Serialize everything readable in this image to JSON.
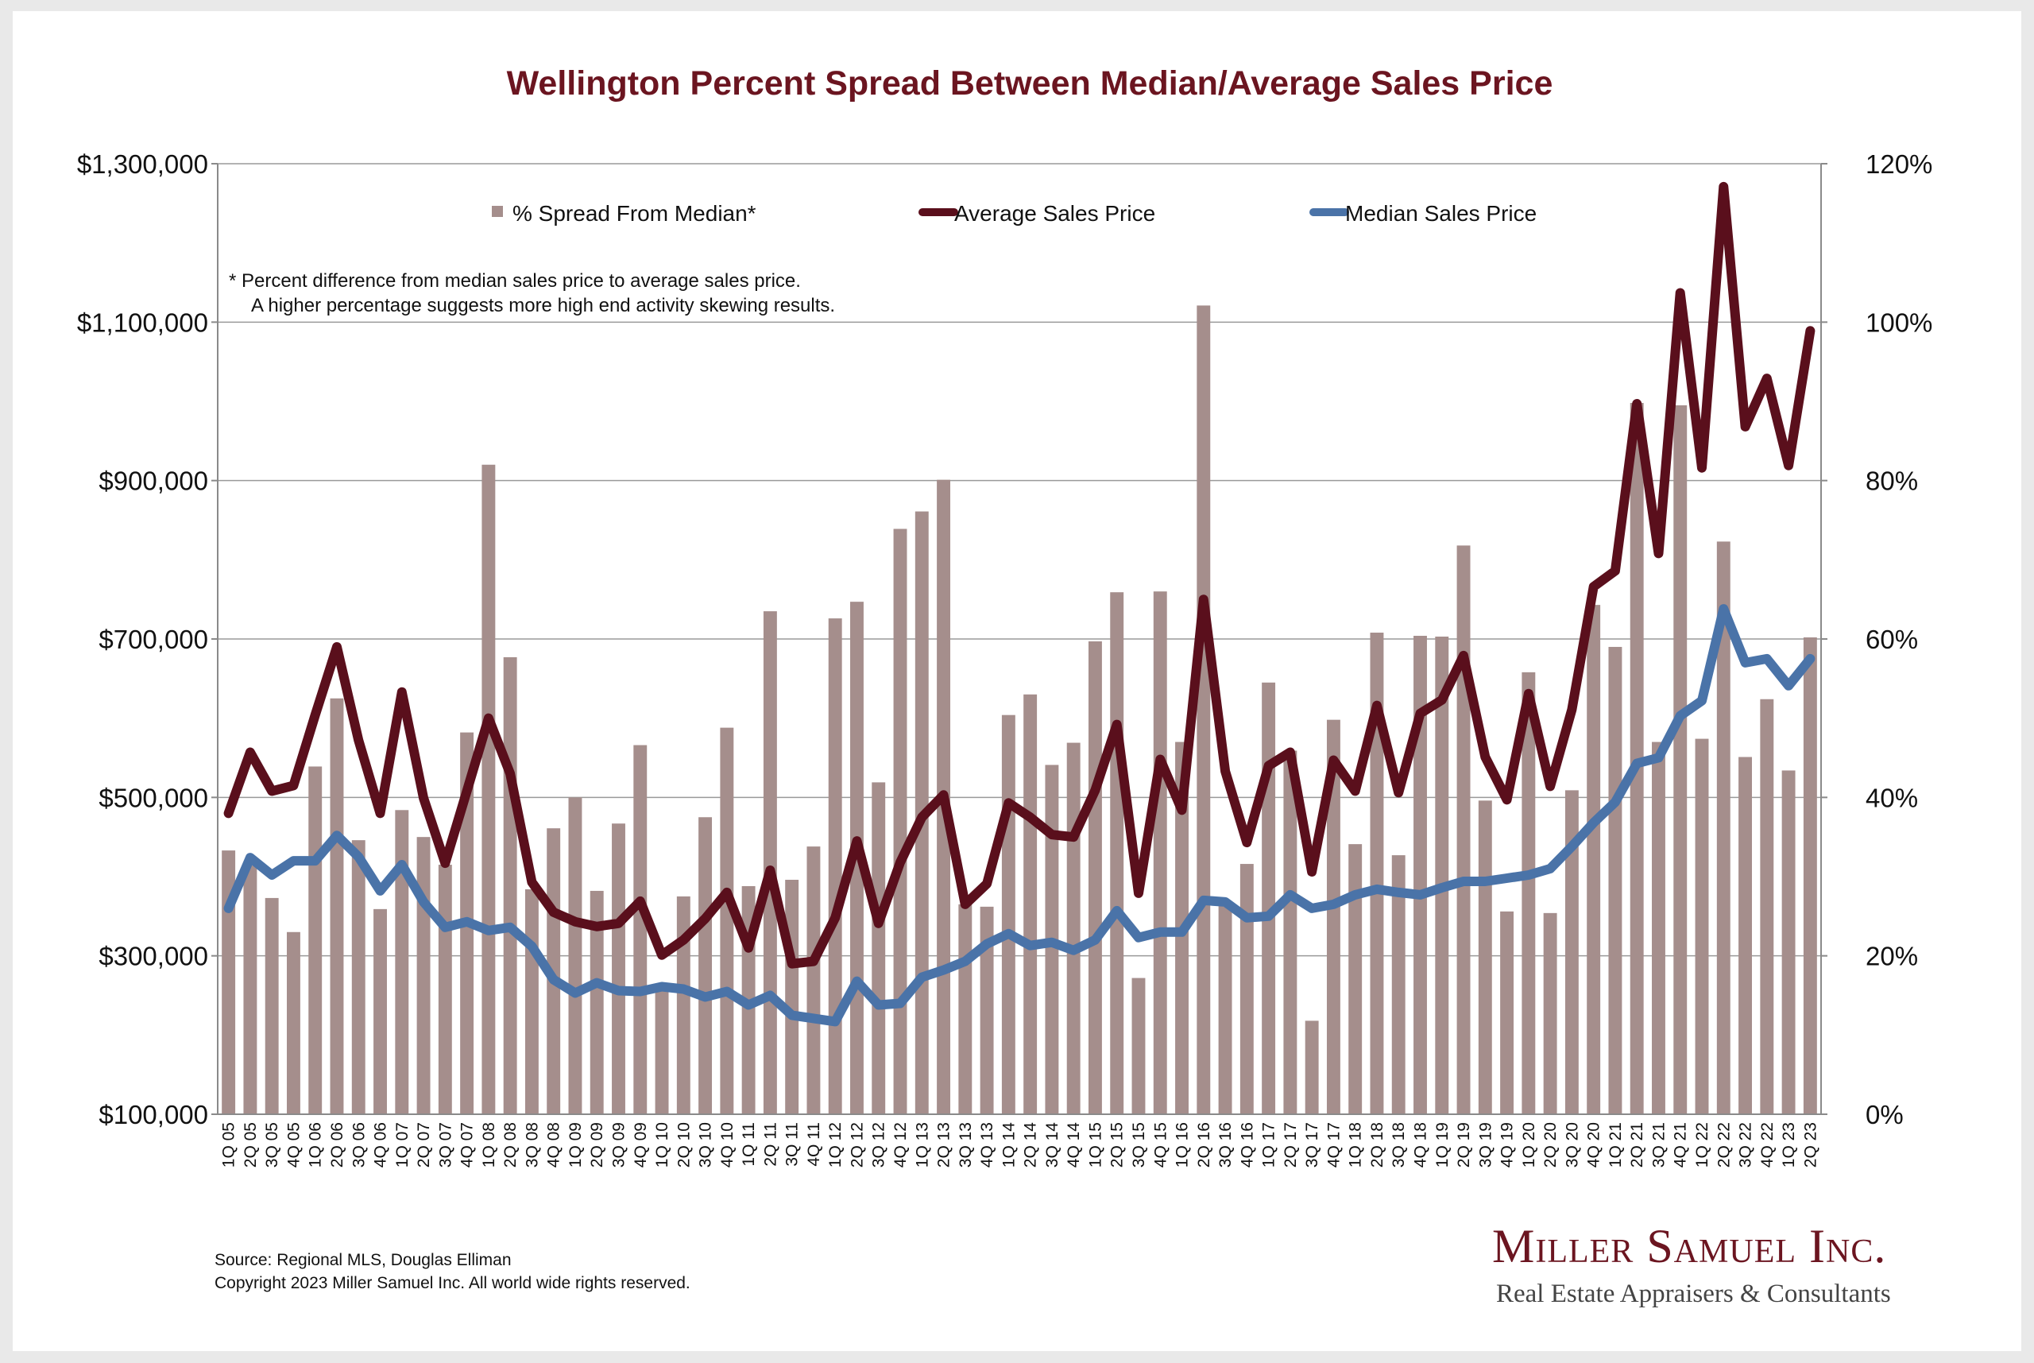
{
  "chart_data": {
    "type": "bar",
    "title": "Wellington Percent Spread Between Median/Average Sales Price",
    "categories": [
      "1Q 05",
      "2Q 05",
      "3Q 05",
      "4Q 05",
      "1Q 06",
      "2Q 06",
      "3Q 06",
      "4Q 06",
      "1Q 07",
      "2Q 07",
      "3Q 07",
      "4Q 07",
      "1Q 08",
      "2Q 08",
      "3Q 08",
      "4Q 08",
      "1Q 09",
      "2Q 09",
      "3Q 09",
      "4Q 09",
      "1Q 10",
      "2Q 10",
      "3Q 10",
      "4Q 10",
      "1Q 11",
      "2Q 11",
      "3Q 11",
      "4Q 11",
      "1Q 12",
      "2Q 12",
      "3Q 12",
      "4Q 12",
      "1Q 13",
      "2Q 13",
      "3Q 13",
      "4Q 13",
      "1Q 14",
      "2Q 14",
      "3Q 14",
      "4Q 14",
      "1Q 15",
      "2Q 15",
      "3Q 15",
      "4Q 15",
      "1Q 16",
      "2Q 16",
      "3Q 16",
      "4Q 16",
      "1Q 17",
      "2Q 17",
      "3Q 17",
      "4Q 17",
      "1Q 18",
      "2Q 18",
      "3Q 18",
      "4Q 18",
      "1Q 19",
      "2Q 19",
      "3Q 19",
      "4Q 19",
      "1Q 20",
      "2Q 20",
      "3Q 20",
      "4Q 20",
      "1Q 21",
      "2Q 21",
      "3Q 21",
      "4Q 21",
      "1Q 22",
      "2Q 22",
      "3Q 22",
      "4Q 22",
      "1Q 23",
      "2Q 23"
    ],
    "series": [
      {
        "name": "% Spread From Median*",
        "type": "bar",
        "axis": "right",
        "color": "#a58e8c",
        "values": [
          33.3,
          31.4,
          27.3,
          23.0,
          43.9,
          52.5,
          34.6,
          25.9,
          38.4,
          35.0,
          31.5,
          48.2,
          82.0,
          57.7,
          28.4,
          36.1,
          40.0,
          28.2,
          36.7,
          46.6,
          16.5,
          27.5,
          37.5,
          48.8,
          28.8,
          63.5,
          29.6,
          33.8,
          62.6,
          64.7,
          41.9,
          73.9,
          76.1,
          80.1,
          26.5,
          26.2,
          50.4,
          53.0,
          44.1,
          46.9,
          59.7,
          65.9,
          17.2,
          66.0,
          47.0,
          102.1,
          26.9,
          31.6,
          54.5,
          45.9,
          11.8,
          49.8,
          34.1,
          60.8,
          32.7,
          60.4,
          60.3,
          71.8,
          39.6,
          25.6,
          55.8,
          25.4,
          40.9,
          64.3,
          59.0,
          89.8,
          47.0,
          89.5,
          47.4,
          72.3,
          45.1,
          52.4,
          43.4,
          60.2
        ]
      },
      {
        "name": "Average Sales Price",
        "type": "line",
        "axis": "left",
        "color": "#5a0f1c",
        "values": [
          480000,
          557000,
          508000,
          515000,
          604000,
          690000,
          572000,
          480000,
          633000,
          499000,
          417000,
          508000,
          600000,
          530000,
          393000,
          355000,
          343000,
          337000,
          341000,
          369000,
          301000,
          320000,
          347000,
          380000,
          310000,
          408000,
          290000,
          293000,
          348000,
          445000,
          341000,
          418000,
          475000,
          503000,
          365000,
          391000,
          493000,
          475000,
          453000,
          450000,
          509000,
          592000,
          379000,
          548000,
          484000,
          750000,
          533000,
          443000,
          540000,
          557000,
          406000,
          547000,
          508000,
          616000,
          506000,
          606000,
          623000,
          679000,
          551000,
          497000,
          631000,
          514000,
          611000,
          766000,
          786000,
          997000,
          808000,
          1137000,
          916000,
          1271000,
          968000,
          1029000,
          919000,
          1089000
        ]
      },
      {
        "name": "Median Sales Price",
        "type": "line",
        "axis": "left",
        "color": "#4a73a8",
        "values": [
          360000,
          424000,
          402000,
          420000,
          420000,
          452000,
          425000,
          382000,
          415000,
          368000,
          336000,
          343000,
          332000,
          336000,
          312000,
          270000,
          253000,
          266000,
          256000,
          255000,
          261000,
          258000,
          248000,
          255000,
          238000,
          250000,
          225000,
          221000,
          217000,
          268000,
          238000,
          240000,
          273000,
          282000,
          293000,
          315000,
          328000,
          313000,
          317000,
          307000,
          320000,
          357000,
          323000,
          330000,
          330000,
          370000,
          368000,
          348000,
          350000,
          377000,
          360000,
          365000,
          377000,
          384000,
          380000,
          377000,
          386000,
          394000,
          394000,
          398000,
          402000,
          410000,
          438000,
          468000,
          494000,
          543000,
          550000,
          603000,
          622000,
          738000,
          670000,
          675000,
          641000,
          675000
        ]
      }
    ],
    "y_left": {
      "min": 100000,
      "max": 1300000,
      "ticks": [
        "$100,000",
        "$300,000",
        "$500,000",
        "$700,000",
        "$900,000",
        "$1,100,000",
        "$1,300,000"
      ]
    },
    "y_right": {
      "min": 0,
      "max": 120,
      "ticks": [
        "0%",
        "20%",
        "40%",
        "60%",
        "80%",
        "100%",
        "120%"
      ]
    },
    "grid": true,
    "legend": "top-inside"
  },
  "note": {
    "line1": "*  Percent difference from median sales price to average sales price.",
    "line2": "A higher percentage suggests more high end activity skewing results."
  },
  "source": {
    "line1": "Source: Regional MLS, Douglas Elliman",
    "line2": "Copyright 2023 Miller Samuel Inc.  All world wide rights reserved."
  },
  "brand": {
    "name": "Miller Samuel Inc.",
    "tagline": "Real Estate Appraisers & Consultants"
  }
}
